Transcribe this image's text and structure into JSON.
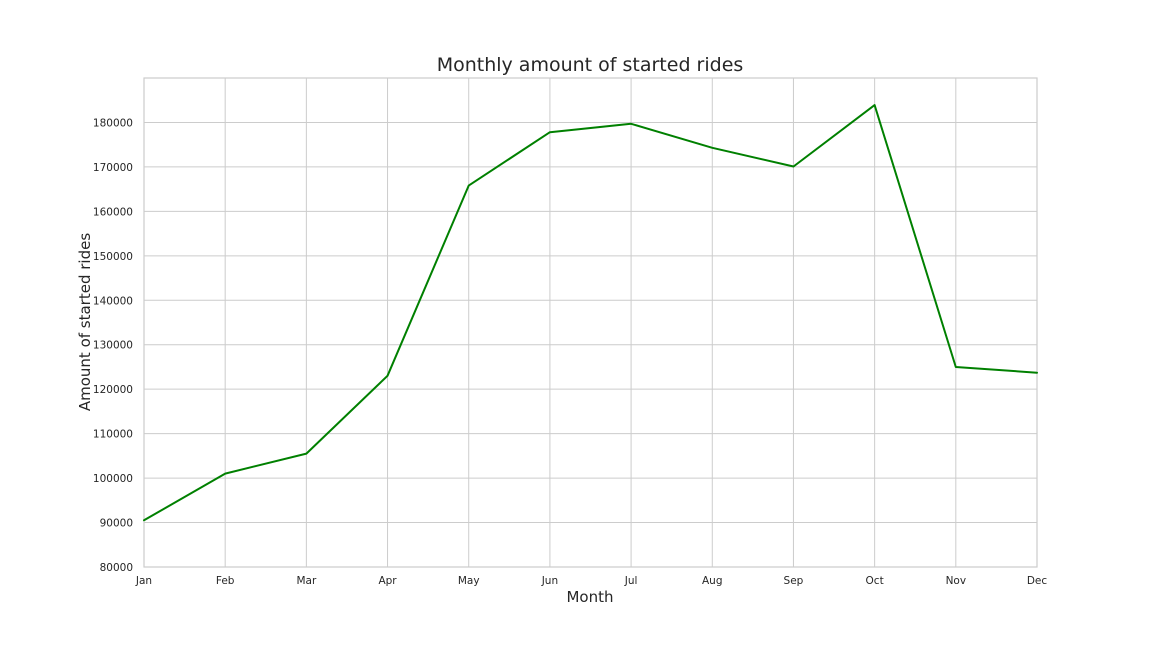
{
  "chart_data": {
    "type": "line",
    "title": "Monthly amount of started rides",
    "xlabel": "Month",
    "ylabel": "Amount of started rides",
    "categories": [
      "Jan",
      "Feb",
      "Mar",
      "Apr",
      "May",
      "Jun",
      "Jul",
      "Aug",
      "Sep",
      "Oct",
      "Nov",
      "Dec"
    ],
    "series": [
      {
        "values": [
          90500,
          101000,
          105500,
          123000,
          165800,
          177800,
          179700,
          174300,
          170100,
          183900,
          125000,
          123700
        ],
        "color": "#008000"
      }
    ],
    "ylim": [
      80000,
      190000
    ],
    "yticks": [
      "80000",
      "90000",
      "100000",
      "110000",
      "120000",
      "130000",
      "140000",
      "150000",
      "160000",
      "170000",
      "180000"
    ],
    "grid": true
  }
}
